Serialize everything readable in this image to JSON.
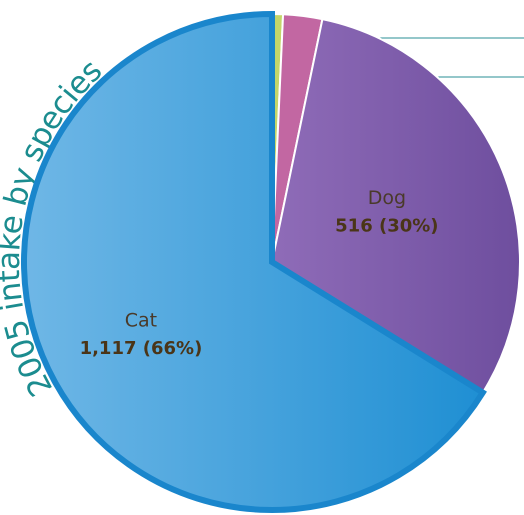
{
  "chart_data": {
    "type": "pie",
    "title": "2005 intake by species",
    "categories": [
      null,
      null,
      "Dog",
      "Cat"
    ],
    "values": [
      12,
      43,
      516,
      1117
    ],
    "value_labels": [
      null,
      null,
      "516 (30%)",
      "1,117 (66%)"
    ],
    "colors": [
      "#c4d66a",
      "#c267a2",
      "#7b59a8",
      "#2d98d8"
    ]
  }
}
